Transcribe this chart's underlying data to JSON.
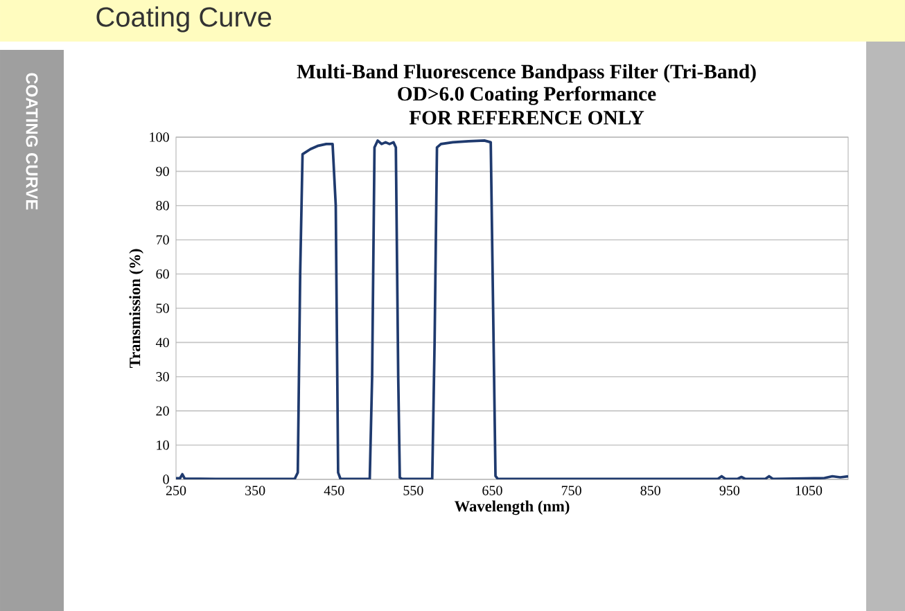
{
  "chart_data": {
    "type": "line",
    "title": "Multi-Band Fluorescence Bandpass Filter (Tri-Band)",
    "subtitle": "OD>6.0 Coating Performance",
    "annotations": [
      "Coating Curve",
      "COATING CURVE",
      "FOR REFERENCE ONLY"
    ],
    "xlabel": "Wavelength (nm)",
    "ylabel": "Transmission (%)",
    "x": [
      250,
      255,
      258,
      261,
      300,
      400,
      404,
      407,
      410,
      420,
      430,
      440,
      448,
      452,
      455,
      458,
      495,
      498,
      501,
      505,
      510,
      515,
      520,
      525,
      528,
      531,
      533,
      536,
      574,
      577,
      580,
      585,
      600,
      620,
      640,
      648,
      651,
      654,
      657,
      935,
      940,
      945,
      960,
      965,
      970,
      995,
      1000,
      1005,
      1070,
      1080,
      1090,
      1100
    ],
    "series": [
      {
        "color": "#1f3a6e",
        "values": [
          0.3,
          0.3,
          1.5,
          0.2,
          0.1,
          0.1,
          2,
          60,
          95,
          96.5,
          97.5,
          98,
          98,
          80,
          2,
          0.1,
          0.1,
          30,
          97,
          99,
          98,
          98.5,
          98,
          98.5,
          97,
          30,
          0.5,
          0.1,
          0.1,
          40,
          97,
          98,
          98.5,
          98.8,
          99,
          98.5,
          50,
          1,
          0.1,
          0.1,
          0.9,
          0.1,
          0.1,
          0.7,
          0.1,
          0.1,
          0.9,
          0.1,
          0.4,
          0.9,
          0.6,
          0.9
        ]
      }
    ],
    "xlim": [
      250,
      1100
    ],
    "ylim": [
      0,
      100
    ],
    "xticks": [
      250,
      350,
      450,
      550,
      650,
      750,
      850,
      950,
      1050
    ],
    "yticks": [
      0,
      10,
      20,
      30,
      40,
      50,
      60,
      70,
      80,
      90,
      100
    ],
    "grid": "y"
  }
}
